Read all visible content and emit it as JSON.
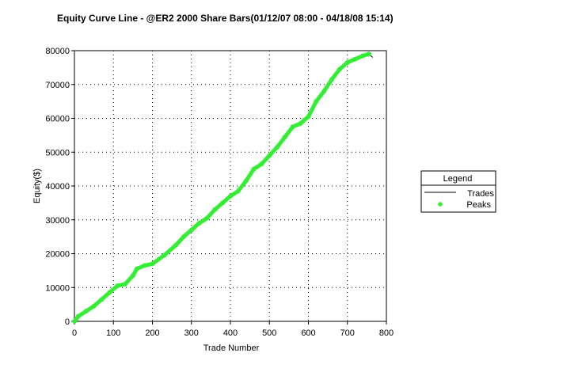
{
  "chart_data": {
    "type": "line",
    "title": "Equity Curve Line - @ER2 2000 Share Bars(01/12/07 08:00 - 04/18/08 15:14)",
    "xlabel": "Trade Number",
    "ylabel": "Equity($)",
    "xlim": [
      0,
      800
    ],
    "ylim": [
      0,
      80000
    ],
    "x_ticks": [
      "0",
      "100",
      "200",
      "300",
      "400",
      "500",
      "600",
      "700",
      "800"
    ],
    "y_ticks": [
      "0",
      "10000",
      "20000",
      "30000",
      "40000",
      "50000",
      "60000",
      "70000",
      "80000"
    ],
    "grid": true,
    "grid_style": "dotted",
    "legend": {
      "title": "Legend",
      "position": "right",
      "entries": [
        {
          "name": "Trades",
          "marker": "line",
          "color": "#000000"
        },
        {
          "name": "Peaks",
          "marker": "dot",
          "color": "#33ee33"
        }
      ]
    },
    "series": [
      {
        "name": "Trades",
        "color": "#000000",
        "x": [
          0,
          10,
          30,
          50,
          70,
          90,
          110,
          130,
          150,
          160,
          180,
          200,
          230,
          260,
          280,
          300,
          320,
          340,
          360,
          380,
          400,
          420,
          440,
          460,
          480,
          500,
          520,
          540,
          560,
          580,
          600,
          620,
          640,
          660,
          680,
          700,
          720,
          740,
          755,
          765
        ],
        "y": [
          0,
          1500,
          3000,
          4500,
          6500,
          8500,
          10500,
          11000,
          13500,
          15500,
          16500,
          17000,
          19500,
          22500,
          25000,
          27000,
          29000,
          30500,
          33000,
          35000,
          37000,
          38500,
          41500,
          45000,
          46500,
          49000,
          51500,
          54500,
          57500,
          58500,
          60500,
          65000,
          68000,
          71500,
          74500,
          76500,
          77500,
          78500,
          79000,
          78000
        ]
      },
      {
        "name": "Peaks",
        "color": "#33ee33",
        "x": [
          0,
          10,
          30,
          50,
          70,
          90,
          110,
          130,
          150,
          160,
          180,
          200,
          230,
          260,
          280,
          300,
          320,
          340,
          360,
          380,
          400,
          420,
          440,
          460,
          480,
          500,
          520,
          540,
          560,
          580,
          600,
          620,
          640,
          660,
          680,
          700,
          720,
          740,
          755
        ],
        "y": [
          0,
          1500,
          3000,
          4500,
          6500,
          8500,
          10500,
          11000,
          13500,
          15500,
          16500,
          17000,
          19500,
          22500,
          25000,
          27000,
          29000,
          30500,
          33000,
          35000,
          37000,
          38500,
          41500,
          45000,
          46500,
          49000,
          51500,
          54500,
          57500,
          58500,
          60500,
          65000,
          68000,
          71500,
          74500,
          76500,
          77500,
          78500,
          79000
        ]
      }
    ]
  }
}
